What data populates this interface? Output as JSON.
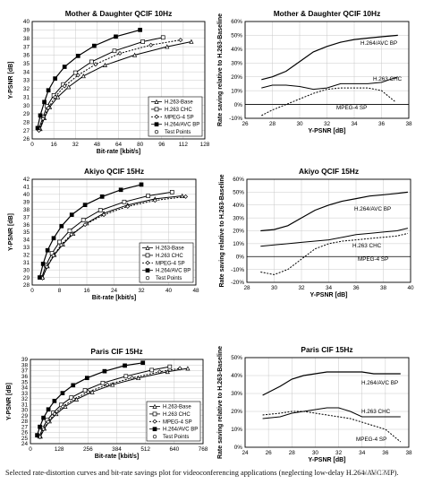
{
  "caption": "Selected rate-distortion curves and bit-rate savings plot for videoconferencing applications (neglecting low-delay H.264/AVC MP).",
  "watermark": "hua1020",
  "chart_data": [
    {
      "type": "line",
      "title": "Mother & Daughter QCIF 10Hz",
      "xlabel": "Bit-rate [kbit/s]",
      "ylabel": "Y-PSNR [dB]",
      "xlim": [
        0,
        128
      ],
      "ylim": [
        26,
        40
      ],
      "xticks": [
        0,
        16,
        32,
        48,
        64,
        80,
        96,
        112,
        128
      ],
      "yticks": [
        26,
        27,
        28,
        29,
        30,
        31,
        32,
        33,
        34,
        35,
        36,
        37,
        38,
        39,
        40
      ],
      "grid": true,
      "legend": "bottom-right",
      "legend_entries": [
        "H.263-Base",
        "H.263 CHC",
        "MPEG-4 SP",
        "H.264/AVC BP",
        "Test Points"
      ],
      "series": [
        {
          "name": "H.263-Base",
          "marker": "triangle",
          "x": [
            6,
            9,
            13,
            19,
            27,
            38,
            54,
            76,
            100,
            118
          ],
          "y": [
            27.2,
            28.5,
            29.8,
            31.0,
            32.2,
            33.5,
            34.8,
            36.0,
            37.0,
            37.6
          ]
        },
        {
          "name": "H.263 CHC",
          "marker": "square",
          "x": [
            5,
            8,
            11,
            16,
            23,
            32,
            44,
            61,
            82,
            97
          ],
          "y": [
            27.2,
            28.6,
            29.9,
            31.2,
            32.5,
            33.9,
            35.2,
            36.5,
            37.6,
            38.1
          ]
        },
        {
          "name": "MPEG-4 SP",
          "marker": "diamond",
          "x": [
            5,
            8,
            12,
            17,
            24,
            34,
            47,
            65,
            88,
            110
          ],
          "y": [
            27.0,
            28.4,
            29.7,
            31.0,
            32.3,
            33.6,
            34.9,
            36.2,
            37.2,
            37.8
          ]
        },
        {
          "name": "H.264/AVC BP",
          "marker": "filled-square",
          "x": [
            4,
            6,
            9,
            12,
            17,
            24,
            34,
            46,
            62,
            80
          ],
          "y": [
            27.3,
            28.8,
            30.4,
            31.8,
            33.2,
            34.6,
            35.9,
            37.1,
            38.2,
            39.0
          ]
        }
      ]
    },
    {
      "type": "line",
      "title": "Mother & Daughter QCIF 10Hz",
      "xlabel": "Y-PSNR [dB]",
      "ylabel": "Rate saving relative to H.263-Baseline",
      "xlim": [
        26,
        38
      ],
      "ylim": [
        -10,
        60
      ],
      "xticks": [
        26,
        28,
        30,
        32,
        34,
        36,
        38
      ],
      "yticks": [
        -10,
        0,
        10,
        20,
        30,
        40,
        50,
        60
      ],
      "yticklabels": [
        "-10%",
        "0%",
        "10%",
        "20%",
        "30%",
        "40%",
        "50%",
        "60%"
      ],
      "grid": true,
      "series": [
        {
          "name": "H.264/AVC BP",
          "x": [
            27.2,
            28,
            29,
            30,
            31,
            32,
            33,
            34,
            35,
            36,
            37.2
          ],
          "y": [
            18,
            20,
            24,
            31,
            38,
            42,
            45,
            47,
            48,
            49,
            50
          ]
        },
        {
          "name": "H.263 CHC",
          "x": [
            27.2,
            28,
            29,
            30,
            31,
            32,
            33,
            34,
            35,
            36,
            37.2
          ],
          "y": [
            12,
            14,
            14,
            13,
            11,
            12,
            15,
            15,
            15,
            16,
            20
          ]
        },
        {
          "name": "MPEG-4 SP",
          "x": [
            27.2,
            28,
            29,
            30,
            31,
            32,
            33,
            34,
            35,
            36,
            37
          ],
          "y": [
            -8,
            -4,
            0,
            4,
            8,
            11,
            12,
            12,
            12,
            10,
            2
          ]
        }
      ],
      "annotations": [
        "H.264/AVC BP",
        "H.263 CHC",
        "MPEG-4 SP"
      ]
    },
    {
      "type": "line",
      "title": "Akiyo QCIF 15Hz",
      "xlabel": "Bit-rate [kbit/s]",
      "ylabel": "Y-PSNR [dB]",
      "xlim": [
        0,
        48
      ],
      "ylim": [
        28,
        42
      ],
      "xticks": [
        0,
        8,
        16,
        24,
        32,
        40,
        48
      ],
      "yticks": [
        28,
        29,
        30,
        31,
        32,
        33,
        34,
        35,
        36,
        37,
        38,
        39,
        40,
        41,
        42
      ],
      "grid": true,
      "legend": "bottom-right",
      "legend_entries": [
        "H.263-Base",
        "H.263 CHC",
        "MPEG-4 SP",
        "H.264/AVC BP",
        "Test Points"
      ],
      "series": [
        {
          "name": "H.263-Base",
          "marker": "triangle",
          "x": [
            3,
            4.5,
            6.5,
            9,
            12,
            16,
            21,
            28,
            36,
            44
          ],
          "y": [
            29.0,
            30.5,
            32.0,
            33.4,
            34.8,
            36.2,
            37.5,
            38.6,
            39.4,
            39.8
          ]
        },
        {
          "name": "H.263 CHC",
          "marker": "square",
          "x": [
            2.8,
            4,
            5.8,
            8,
            11,
            15,
            20,
            27,
            34,
            41
          ],
          "y": [
            29.0,
            30.6,
            32.2,
            33.7,
            35.2,
            36.6,
            37.9,
            39.0,
            39.8,
            40.3
          ]
        },
        {
          "name": "MPEG-4 SP",
          "marker": "diamond",
          "x": [
            3,
            4.3,
            6.2,
            8.5,
            11.5,
            15.5,
            21,
            28,
            36,
            45
          ],
          "y": [
            28.9,
            30.4,
            31.9,
            33.3,
            34.7,
            36.0,
            37.3,
            38.4,
            39.2,
            39.7
          ]
        },
        {
          "name": "H.264/AVC BP",
          "marker": "filled-square",
          "x": [
            2.2,
            3.2,
            4.5,
            6.3,
            8.6,
            11.6,
            15.5,
            20.5,
            26,
            32
          ],
          "y": [
            29.0,
            30.8,
            32.6,
            34.2,
            35.8,
            37.3,
            38.6,
            39.7,
            40.6,
            41.3
          ]
        }
      ]
    },
    {
      "type": "line",
      "title": "Akiyo QCIF 15Hz",
      "xlabel": "Y-PSNR [dB]",
      "ylabel": "Rate saving relative to H.263-Baseline",
      "xlim": [
        28,
        40
      ],
      "ylim": [
        -20,
        60
      ],
      "xticks": [
        28,
        30,
        32,
        34,
        36,
        38,
        40
      ],
      "yticks": [
        -20,
        -10,
        0,
        10,
        20,
        30,
        40,
        50,
        60
      ],
      "yticklabels": [
        "-20%",
        "-10%",
        "0%",
        "10%",
        "20%",
        "30%",
        "40%",
        "50%",
        "60%"
      ],
      "grid": true,
      "series": [
        {
          "name": "H.264/AVC BP",
          "x": [
            29,
            30,
            31,
            32,
            33,
            34,
            35,
            36,
            37,
            38,
            39,
            39.8
          ],
          "y": [
            20,
            21,
            24,
            30,
            36,
            40,
            43,
            45,
            47,
            48,
            49,
            50
          ]
        },
        {
          "name": "H.263 CHC",
          "x": [
            29,
            30,
            31,
            32,
            33,
            34,
            35,
            36,
            37,
            38,
            39,
            39.8
          ],
          "y": [
            8,
            9,
            10,
            11,
            12,
            13,
            15,
            17,
            18,
            19,
            20,
            22
          ]
        },
        {
          "name": "MPEG-4 SP",
          "x": [
            29,
            30,
            31,
            32,
            33,
            34,
            35,
            36,
            37,
            38,
            39,
            39.8
          ],
          "y": [
            -12,
            -14,
            -10,
            -2,
            6,
            10,
            12,
            13,
            14,
            15,
            16,
            18
          ]
        }
      ],
      "annotations": [
        "H.264/AVC BP",
        "H.263 CHC",
        "MPEG-4 SP"
      ]
    },
    {
      "type": "line",
      "title": "Paris CIF 15Hz",
      "xlabel": "Bit-rate [kbit/s]",
      "ylabel": "Y-PSNR [dB]",
      "xlim": [
        0,
        768
      ],
      "ylim": [
        24,
        39
      ],
      "xticks": [
        0,
        128,
        256,
        384,
        512,
        640,
        768
      ],
      "yticks": [
        24,
        25,
        26,
        27,
        28,
        29,
        30,
        31,
        32,
        33,
        34,
        35,
        36,
        37,
        38,
        39
      ],
      "grid": true,
      "legend": "bottom-right",
      "legend_entries": [
        "H.263-Base",
        "H.263 CHC",
        "MPEG-4 SP",
        "H.264/AVC BP",
        "Test Points"
      ],
      "series": [
        {
          "name": "H.263-Base",
          "marker": "triangle",
          "x": [
            45,
            62,
            85,
            115,
            155,
            205,
            275,
            365,
            480,
            610,
            700
          ],
          "y": [
            25.3,
            26.7,
            28.0,
            29.3,
            30.6,
            31.9,
            33.2,
            34.5,
            35.7,
            36.8,
            37.4
          ]
        },
        {
          "name": "H.263 CHC",
          "marker": "square",
          "x": [
            40,
            55,
            75,
            102,
            137,
            182,
            243,
            322,
            425,
            540,
            620
          ],
          "y": [
            25.3,
            26.8,
            28.2,
            29.5,
            30.9,
            32.2,
            33.5,
            34.8,
            36.0,
            37.1,
            37.7
          ]
        },
        {
          "name": "MPEG-4 SP",
          "marker": "diamond",
          "x": [
            42,
            58,
            79,
            107,
            144,
            192,
            257,
            342,
            452,
            575,
            665
          ],
          "y": [
            25.2,
            26.6,
            27.9,
            29.3,
            30.6,
            31.9,
            33.2,
            34.5,
            35.7,
            36.8,
            37.4
          ]
        },
        {
          "name": "H.264/AVC BP",
          "marker": "filled-square",
          "x": [
            30,
            42,
            58,
            80,
            107,
            143,
            190,
            252,
            330,
            420,
            500
          ],
          "y": [
            25.5,
            27.0,
            28.6,
            30.1,
            31.6,
            33.0,
            34.4,
            35.7,
            36.9,
            37.9,
            38.4
          ]
        }
      ]
    },
    {
      "type": "line",
      "title": "Paris CIF 15Hz",
      "xlabel": "Y-PSNR [dB]",
      "ylabel": "Rate saving relative to H.263-Baseline",
      "xlim": [
        24,
        38
      ],
      "ylim": [
        0,
        50
      ],
      "xticks": [
        24,
        26,
        28,
        30,
        32,
        34,
        36,
        38
      ],
      "yticks": [
        0,
        10,
        20,
        30,
        40,
        50
      ],
      "yticklabels": [
        "0%",
        "10%",
        "20%",
        "30%",
        "40%",
        "50%"
      ],
      "grid": true,
      "series": [
        {
          "name": "H.264/AVC BP",
          "x": [
            25.5,
            27,
            28,
            29,
            30,
            31,
            32,
            33,
            34,
            35,
            36,
            37.3
          ],
          "y": [
            29,
            34,
            38,
            40,
            41,
            42,
            42,
            42,
            42,
            41,
            41,
            41
          ]
        },
        {
          "name": "H.263 CHC",
          "x": [
            25.5,
            27,
            28,
            29,
            30,
            31,
            32,
            33,
            34,
            35,
            36,
            37.3
          ],
          "y": [
            16,
            17,
            19,
            20,
            21,
            22,
            22,
            20,
            17,
            17,
            17,
            17
          ]
        },
        {
          "name": "MPEG-4 SP",
          "x": [
            25.5,
            27,
            28,
            29,
            30,
            31,
            32,
            33,
            34,
            35,
            36,
            37.3
          ],
          "y": [
            18,
            19,
            20,
            20,
            19,
            18,
            17,
            16,
            14,
            12,
            10,
            3
          ]
        }
      ],
      "annotations": [
        "H.264/AVC BP",
        "H.263 CHC",
        "MPEG-4 SP"
      ]
    }
  ]
}
